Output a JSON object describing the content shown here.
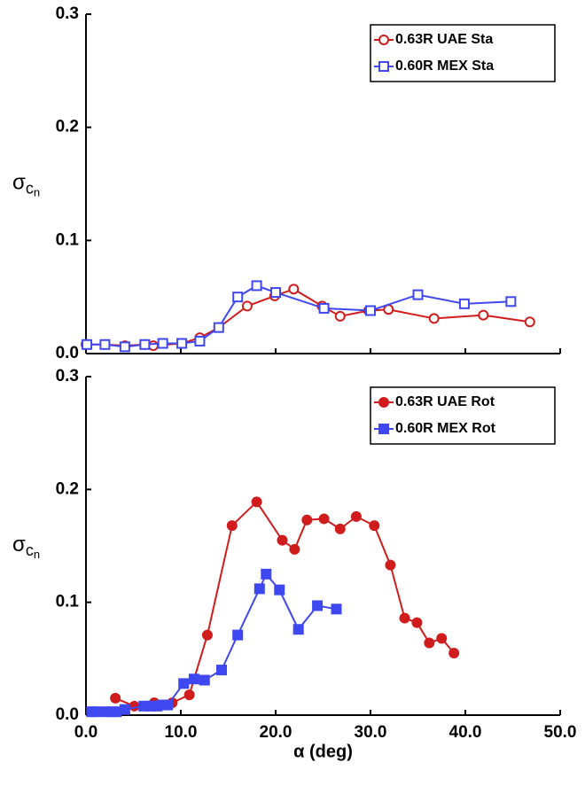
{
  "chart_data": [
    {
      "type": "line",
      "ylabel": "σ",
      "ylabel_sub": "c",
      "ylabel_subsub": "n",
      "xlim": [
        0,
        50
      ],
      "ylim": [
        0,
        0.3
      ],
      "xticks": [
        0,
        10,
        20,
        30,
        40,
        50
      ],
      "yticks": [
        {
          "value": 0,
          "label": "0.0"
        },
        {
          "value": 0.1,
          "label": "0.1"
        },
        {
          "value": 0.2,
          "label": "0.2"
        },
        {
          "value": 0.3,
          "label": "0.3"
        }
      ],
      "legend": "upper right",
      "series": [
        {
          "name": "0.63R UAE Sta",
          "color": "#d01c1c",
          "marker": "circle",
          "filled": false,
          "x": [
            0,
            2,
            4.1,
            6.2,
            7.1,
            10.1,
            12,
            14,
            17,
            19.9,
            21.9,
            24.9,
            26.8,
            29.8,
            31.9,
            36.7,
            41.9,
            46.8
          ],
          "values": [
            0.008,
            0.008,
            0.007,
            0.008,
            0.007,
            0.009,
            0.014,
            0.023,
            0.042,
            0.051,
            0.057,
            0.042,
            0.033,
            0.038,
            0.039,
            0.031,
            0.034,
            0.028
          ]
        },
        {
          "name": "0.60R MEX Sta",
          "color": "#3f48f0",
          "marker": "square",
          "filled": false,
          "x": [
            0.1,
            2,
            4.1,
            6.2,
            8.1,
            10.1,
            12,
            14,
            16,
            18,
            20,
            25.1,
            30,
            35,
            39.9,
            44.8
          ],
          "values": [
            0.008,
            0.008,
            0.006,
            0.008,
            0.009,
            0.009,
            0.011,
            0.023,
            0.05,
            0.06,
            0.054,
            0.04,
            0.038,
            0.052,
            0.044,
            0.046
          ]
        }
      ]
    },
    {
      "type": "line",
      "ylabel": "σ",
      "ylabel_sub": "c",
      "ylabel_subsub": "n",
      "xlabel": "α (deg)",
      "xlim": [
        0,
        50
      ],
      "ylim": [
        0,
        0.3
      ],
      "xticks": [
        {
          "value": 0,
          "label": "0.0"
        },
        {
          "value": 10,
          "label": "10.0"
        },
        {
          "value": 20,
          "label": "20.0"
        },
        {
          "value": 30,
          "label": "30.0"
        },
        {
          "value": 40,
          "label": "40.0"
        },
        {
          "value": 50,
          "label": "50.0"
        }
      ],
      "yticks": [
        {
          "value": 0,
          "label": "0.0"
        },
        {
          "value": 0.1,
          "label": "0.1"
        },
        {
          "value": 0.2,
          "label": "0.2"
        },
        {
          "value": 0.3,
          "label": "0.3"
        }
      ],
      "legend": "upper right",
      "series": [
        {
          "name": "0.63R UAE Rot",
          "color": "#d01c1c",
          "marker": "circle",
          "filled": true,
          "x": [
            3.1,
            5.1,
            7.2,
            8.1,
            9.1,
            10.9,
            12.8,
            15.4,
            18,
            20.7,
            22,
            23.3,
            25.1,
            26.8,
            28.5,
            30.4,
            32.1,
            33.6,
            34.9,
            36.2,
            37.5,
            38.8
          ],
          "values": [
            0.015,
            0.008,
            0.011,
            0.009,
            0.011,
            0.018,
            0.071,
            0.168,
            0.189,
            0.155,
            0.147,
            0.173,
            0.174,
            0.165,
            0.176,
            0.168,
            0.133,
            0.086,
            0.082,
            0.064,
            0.068,
            0.055
          ]
        },
        {
          "name": "0.60R MEX Rot",
          "color": "#3f48f0",
          "marker": "square",
          "filled": true,
          "x": [
            0.6,
            1,
            2,
            2.7,
            3.2,
            4.1,
            6.1,
            6.8,
            7.5,
            8,
            8.6,
            10.3,
            11.4,
            12.5,
            14.3,
            16,
            18.3,
            19,
            20.4,
            22.4,
            24.4,
            26.4
          ],
          "values": [
            0.003,
            0.003,
            0.003,
            0.003,
            0.003,
            0.005,
            0.008,
            0.008,
            0.008,
            0.009,
            0.009,
            0.028,
            0.032,
            0.031,
            0.04,
            0.071,
            0.112,
            0.125,
            0.111,
            0.076,
            0.097,
            0.094
          ]
        }
      ]
    }
  ]
}
